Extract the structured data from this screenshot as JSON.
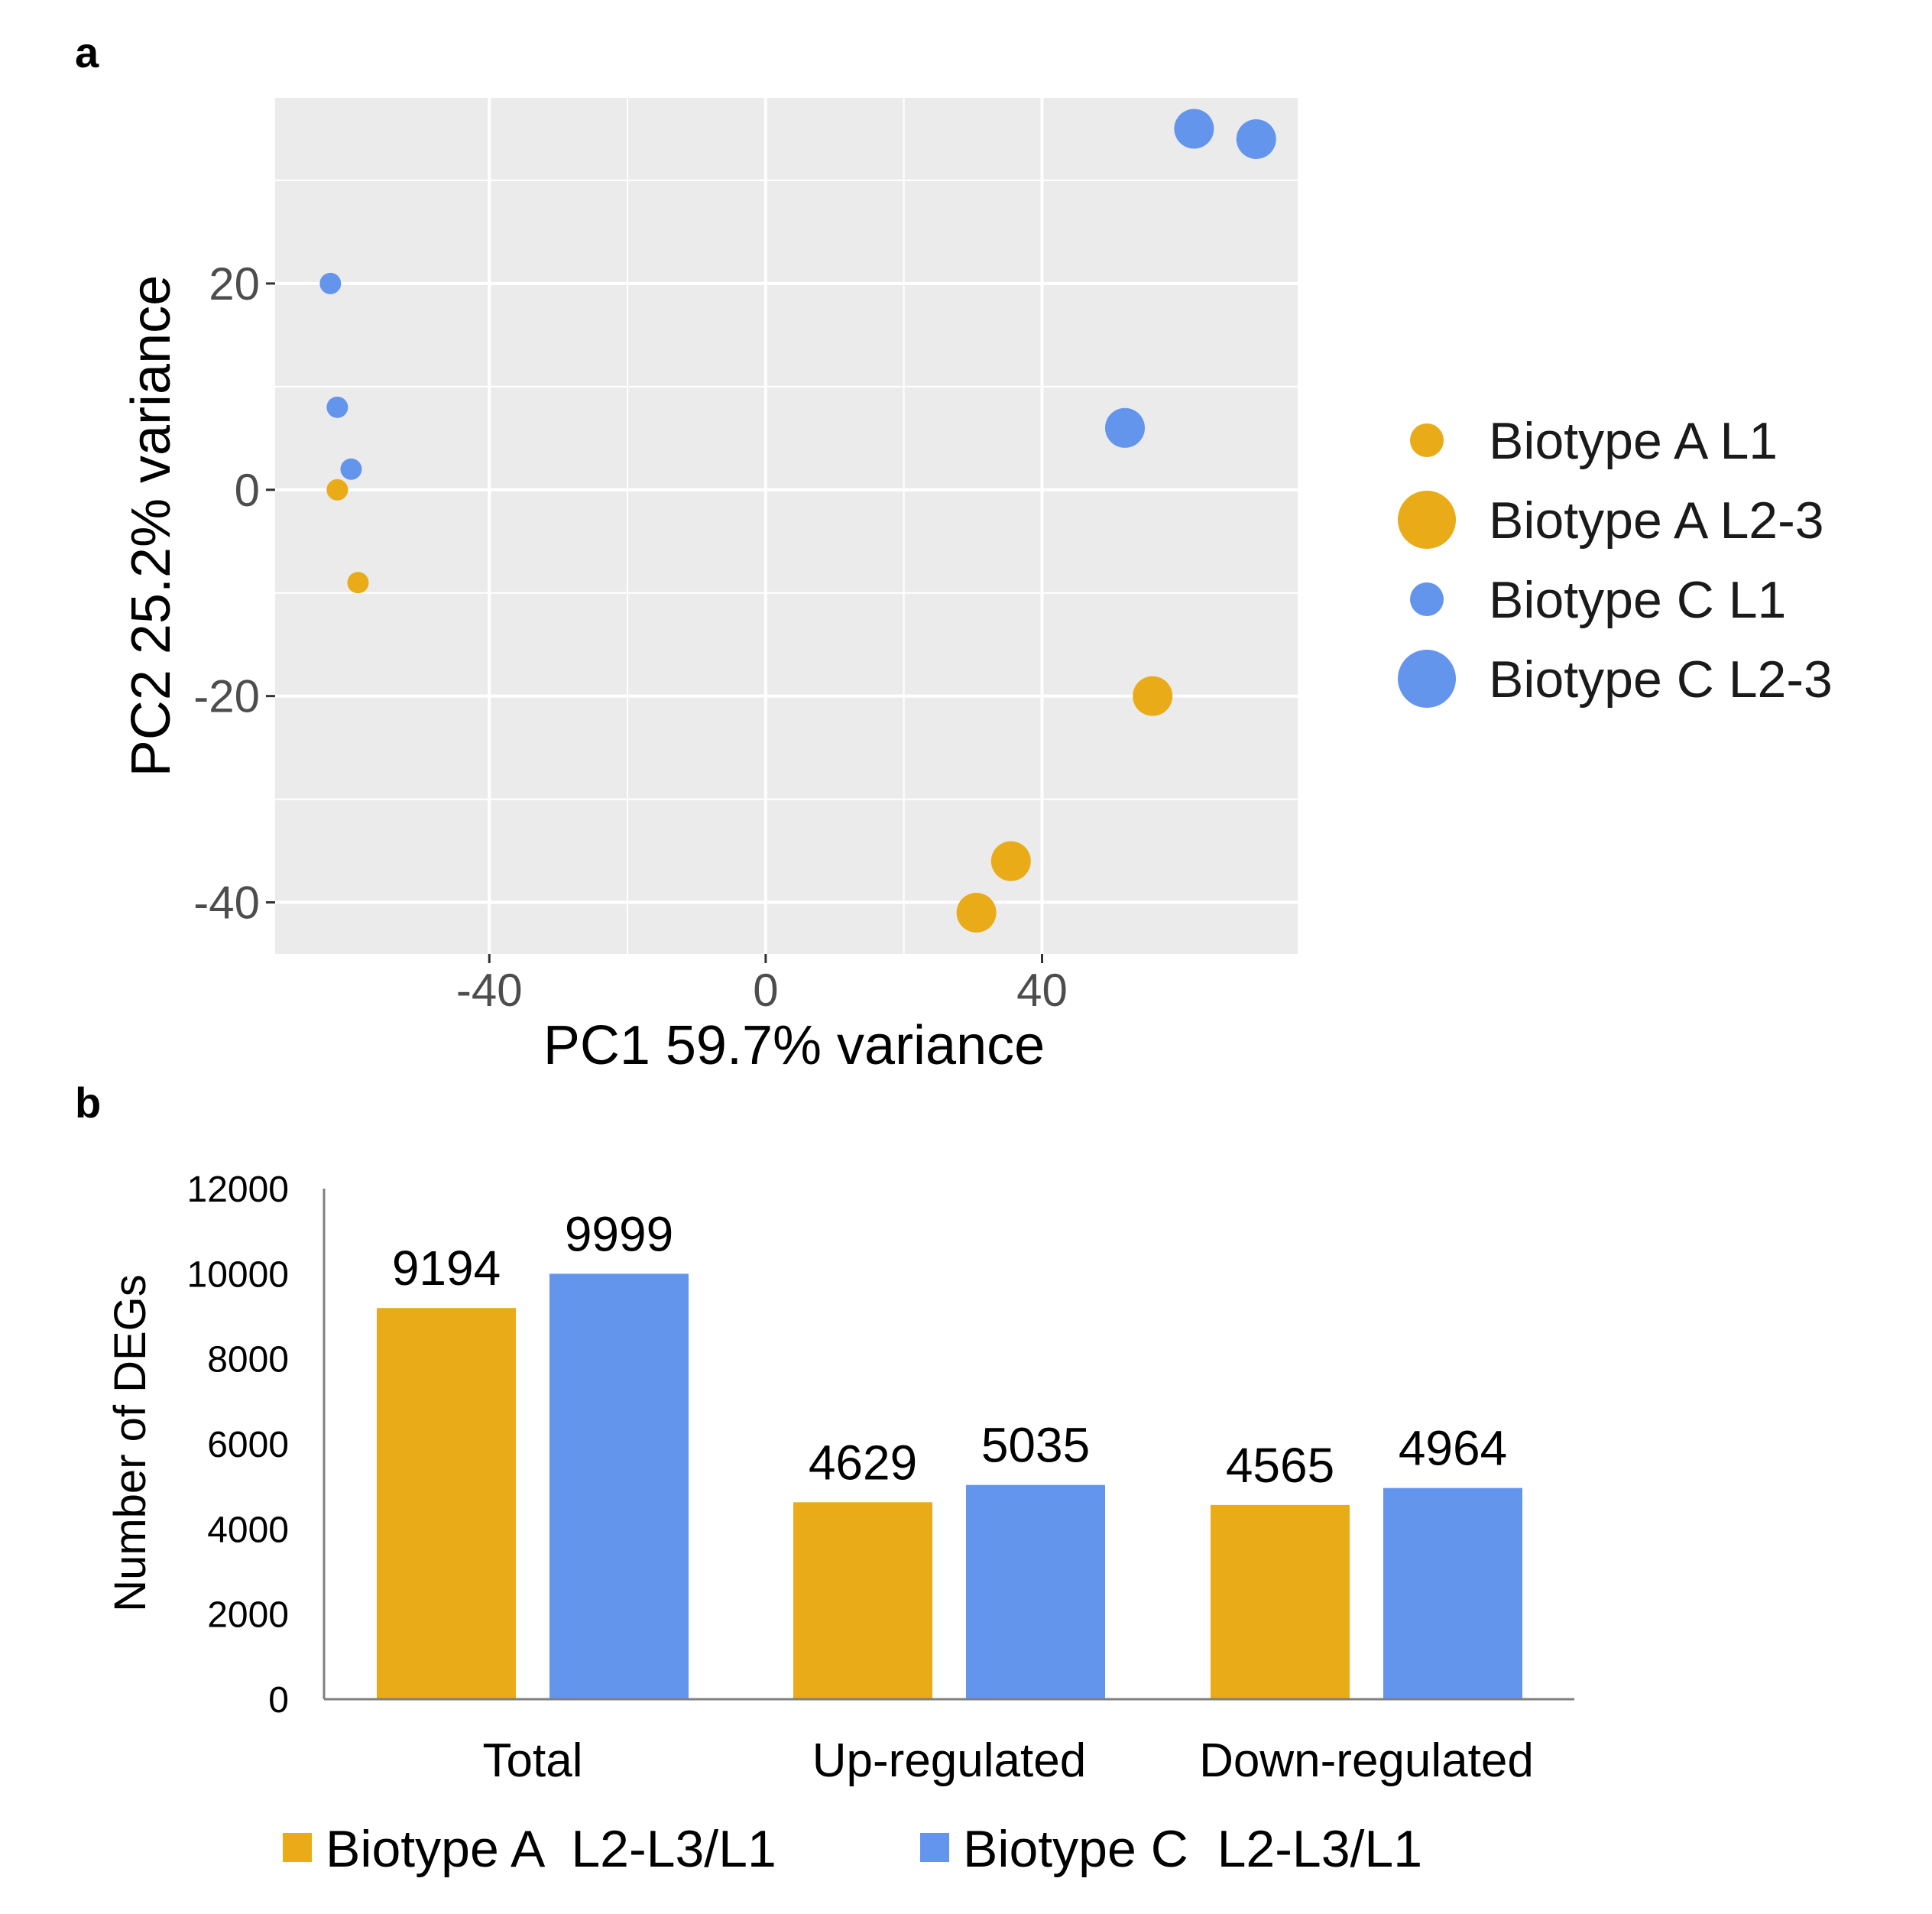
{
  "panels": {
    "a_letter": "a",
    "b_letter": "b"
  },
  "colors": {
    "biotype_a": "#E9AB17",
    "biotype_c": "#6495ED",
    "panel_bg": "#EBEBEB",
    "grid": "#FFFFFF"
  },
  "chart_data": [
    {
      "type": "scatter",
      "title": "",
      "xlabel": "PC1 59.7% variance",
      "ylabel": "PC2 25.2% variance",
      "xlim": [
        -71,
        77
      ],
      "ylim": [
        -45,
        38
      ],
      "xticks": [
        -40,
        0,
        40
      ],
      "yticks": [
        -40,
        -20,
        0,
        20
      ],
      "x_tick_labels": [
        "-40",
        "0",
        "40"
      ],
      "y_tick_labels": [
        "-40",
        "-20",
        "0",
        "20"
      ],
      "grid": true,
      "legend_position": "right",
      "series": [
        {
          "name": "Biotype A L1",
          "color": "#E9AB17",
          "size": "small",
          "points": [
            {
              "x": -62,
              "y": 0
            },
            {
              "x": -59,
              "y": -9
            }
          ]
        },
        {
          "name": "Biotype A L2-3",
          "color": "#E9AB17",
          "size": "large",
          "points": [
            {
              "x": 56,
              "y": -20
            },
            {
              "x": 35.5,
              "y": -36
            },
            {
              "x": 30.5,
              "y": -41
            }
          ]
        },
        {
          "name": "Biotype C L1",
          "color": "#6495ED",
          "size": "small",
          "points": [
            {
              "x": -63,
              "y": 20
            },
            {
              "x": -62,
              "y": 8
            },
            {
              "x": -60,
              "y": 2
            }
          ]
        },
        {
          "name": "Biotype C L2-3",
          "color": "#6495ED",
          "size": "large",
          "points": [
            {
              "x": 62,
              "y": 35
            },
            {
              "x": 71,
              "y": 34
            },
            {
              "x": 52,
              "y": 6
            }
          ]
        }
      ]
    },
    {
      "type": "bar",
      "title": "",
      "xlabel": "",
      "ylabel": "Number of DEGs",
      "ylim": [
        0,
        12000
      ],
      "yticks": [
        0,
        2000,
        4000,
        6000,
        8000,
        10000,
        12000
      ],
      "y_tick_labels": [
        "0",
        "2000",
        "4000",
        "6000",
        "8000",
        "10000",
        "12000"
      ],
      "categories": [
        "Total",
        "Up-regulated",
        "Down-regulated"
      ],
      "legend_position": "bottom",
      "series": [
        {
          "name": "Biotype A  L2-L3/L1",
          "color": "#E9AB17",
          "values": [
            9194,
            4629,
            4565
          ],
          "labels": [
            "9194",
            "4629",
            "4565"
          ]
        },
        {
          "name": "Biotype C  L2-L3/L1",
          "color": "#6495ED",
          "values": [
            9999,
            5035,
            4964
          ],
          "labels": [
            "9999",
            "5035",
            "4964"
          ]
        }
      ]
    }
  ]
}
